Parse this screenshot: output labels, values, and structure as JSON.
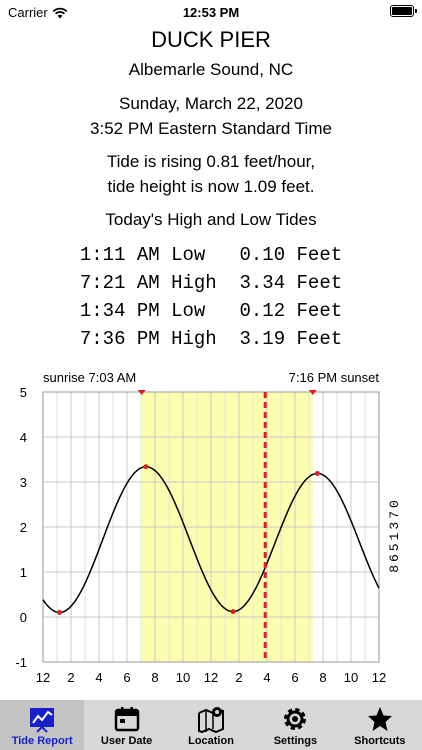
{
  "status_bar": {
    "carrier": "Carrier",
    "time": "12:53 PM",
    "wifi_icon": "wifi-icon",
    "battery_icon": "battery-icon"
  },
  "header": {
    "title": "DUCK PIER",
    "subtitle": "Albemarle Sound, NC",
    "date": "Sunday, March 22, 2020",
    "time": "3:52 PM Eastern Standard Time",
    "rising": "Tide is rising 0.81 feet/hour,",
    "height": "tide height is now  1.09  feet."
  },
  "tides": {
    "heading": "Today's High and Low Tides",
    "rows": [
      {
        "text": "1:11 AM Low   0.10 Feet",
        "time": "1:11 AM",
        "type": "Low",
        "height": 0.1
      },
      {
        "text": "7:21 AM High  3.34 Feet",
        "time": "7:21 AM",
        "type": "High",
        "height": 3.34
      },
      {
        "text": "1:34 PM Low   0.12 Feet",
        "time": "1:34 PM",
        "type": "Low",
        "height": 0.12
      },
      {
        "text": "7:36 PM High  3.19 Feet",
        "time": "7:36 PM",
        "type": "High",
        "height": 3.19
      }
    ]
  },
  "chart_data": {
    "type": "line",
    "sunrise_label": "sunrise  7:03 AM",
    "sunset_label": "7:16 PM sunset",
    "station_id": "8651370",
    "daylight_hours": [
      7.05,
      19.27
    ],
    "current_hour": 15.87,
    "xlim": [
      0,
      24
    ],
    "ylim": [
      -1,
      5
    ],
    "y_ticks": [
      "5",
      "4",
      "3",
      "2",
      "1",
      "0",
      "-1"
    ],
    "x_ticks": [
      "12",
      "2",
      "4",
      "6",
      "8",
      "10",
      "12",
      "2",
      "4",
      "6",
      "8",
      "10",
      "12"
    ],
    "extremes": [
      {
        "hour": 1.18,
        "height": 0.1
      },
      {
        "hour": 7.35,
        "height": 3.34
      },
      {
        "hour": 13.57,
        "height": 0.12
      },
      {
        "hour": 19.6,
        "height": 3.19
      }
    ],
    "series": [
      {
        "x": [
          0,
          24
        ],
        "start_height": 0.28,
        "end_height": 0.58
      }
    ],
    "colors": {
      "daylight": "#fdfdb0",
      "current_line": "#e02020",
      "marker": "#e02020",
      "curve": "#000000",
      "grid_light": "#e2e2e2"
    }
  },
  "tabs": [
    {
      "label": "Tide Report",
      "icon": "chart-icon",
      "active": true
    },
    {
      "label": "User Date",
      "icon": "calendar-icon",
      "active": false
    },
    {
      "label": "Location",
      "icon": "map-pin-icon",
      "active": false
    },
    {
      "label": "Settings",
      "icon": "gear-icon",
      "active": false
    },
    {
      "label": "Shortcuts",
      "icon": "star-icon",
      "active": false
    }
  ]
}
